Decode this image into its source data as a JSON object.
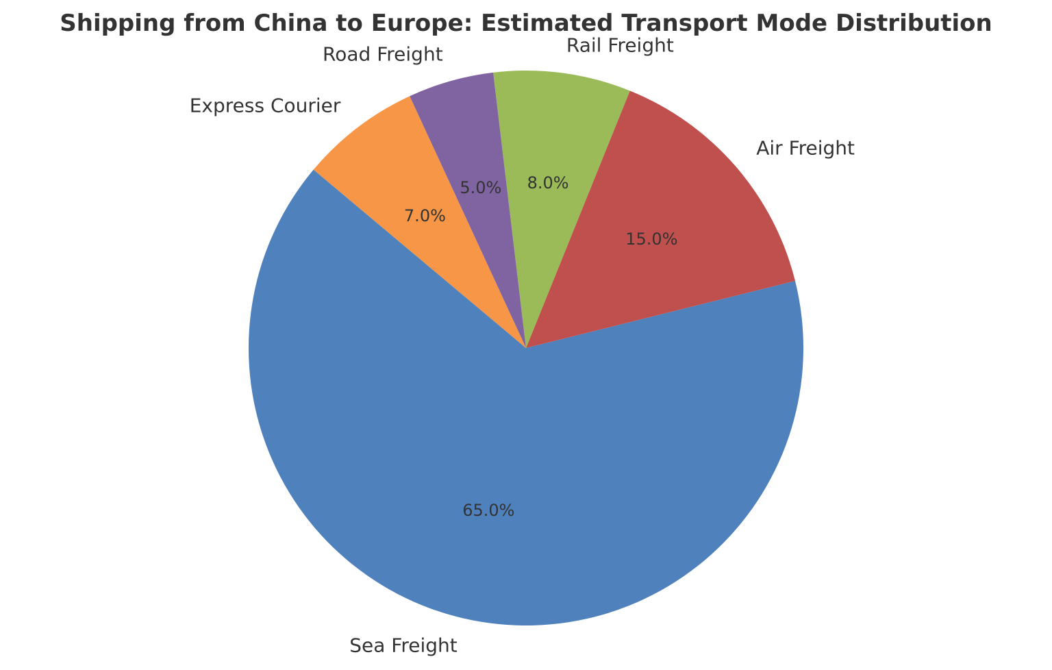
{
  "chart_data": {
    "type": "pie",
    "title": "Shipping from China to Europe: Estimated Transport Mode Distribution",
    "categories": [
      "Sea Freight",
      "Air Freight",
      "Rail Freight",
      "Road Freight",
      "Express Courier"
    ],
    "values": [
      65,
      15,
      8,
      5,
      7
    ],
    "value_labels": [
      "65.0%",
      "15.0%",
      "8.0%",
      "5.0%",
      "7.0%"
    ],
    "colors": [
      "#4f81bd",
      "#c0504d",
      "#9bbb59",
      "#8064a2",
      "#f79646"
    ],
    "start_angle": 140,
    "direction": "counterclockwise",
    "legend": "none",
    "xlabel": "",
    "ylabel": ""
  }
}
